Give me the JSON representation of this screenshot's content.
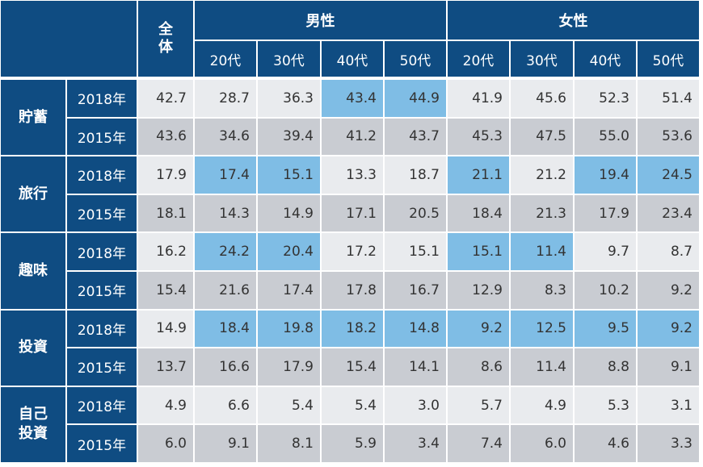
{
  "chart_data": {
    "type": "table",
    "header": {
      "total": "全体",
      "groups": [
        {
          "label": "男性",
          "ages": [
            "20代",
            "30代",
            "40代",
            "50代"
          ]
        },
        {
          "label": "女性",
          "ages": [
            "20代",
            "30代",
            "40代",
            "50代"
          ]
        }
      ]
    },
    "categories": [
      {
        "label": "貯蓄",
        "rows": [
          {
            "year": "2018年",
            "values": [
              "42.7",
              "28.7",
              "36.3",
              "43.4",
              "44.9",
              "41.9",
              "45.6",
              "52.3",
              "51.4"
            ],
            "highlight": [
              false,
              false,
              false,
              true,
              true,
              false,
              false,
              false,
              false
            ]
          },
          {
            "year": "2015年",
            "values": [
              "43.6",
              "34.6",
              "39.4",
              "41.2",
              "43.7",
              "45.3",
              "47.5",
              "55.0",
              "53.6"
            ]
          }
        ]
      },
      {
        "label": "旅行",
        "rows": [
          {
            "year": "2018年",
            "values": [
              "17.9",
              "17.4",
              "15.1",
              "13.3",
              "18.7",
              "21.1",
              "21.2",
              "19.4",
              "24.5"
            ],
            "highlight": [
              false,
              true,
              true,
              false,
              false,
              true,
              false,
              true,
              true
            ]
          },
          {
            "year": "2015年",
            "values": [
              "18.1",
              "14.3",
              "14.9",
              "17.1",
              "20.5",
              "18.4",
              "21.3",
              "17.9",
              "23.4"
            ]
          }
        ]
      },
      {
        "label": "趣味",
        "rows": [
          {
            "year": "2018年",
            "values": [
              "16.2",
              "24.2",
              "20.4",
              "17.2",
              "15.1",
              "15.1",
              "11.4",
              "9.7",
              "8.7"
            ],
            "highlight": [
              false,
              true,
              true,
              false,
              false,
              true,
              true,
              false,
              false
            ]
          },
          {
            "year": "2015年",
            "values": [
              "15.4",
              "21.6",
              "17.4",
              "17.8",
              "16.7",
              "12.9",
              "8.3",
              "10.2",
              "9.2"
            ]
          }
        ]
      },
      {
        "label": "投資",
        "rows": [
          {
            "year": "2018年",
            "values": [
              "14.9",
              "18.4",
              "19.8",
              "18.2",
              "14.8",
              "9.2",
              "12.5",
              "9.5",
              "9.2"
            ],
            "highlight": [
              false,
              true,
              true,
              true,
              true,
              true,
              true,
              true,
              true
            ]
          },
          {
            "year": "2015年",
            "values": [
              "13.7",
              "16.6",
              "17.9",
              "15.4",
              "14.1",
              "8.6",
              "11.4",
              "8.8",
              "9.1"
            ]
          }
        ]
      },
      {
        "label": "自己\n投資",
        "rows": [
          {
            "year": "2018年",
            "values": [
              "4.9",
              "6.6",
              "5.4",
              "5.4",
              "3.0",
              "5.7",
              "4.9",
              "5.3",
              "3.1"
            ],
            "highlight": [
              false,
              false,
              false,
              false,
              false,
              false,
              false,
              false,
              false
            ]
          },
          {
            "year": "2015年",
            "values": [
              "6.0",
              "9.1",
              "8.1",
              "5.9",
              "3.4",
              "7.4",
              "6.0",
              "4.6",
              "3.3"
            ]
          }
        ]
      }
    ],
    "colors": {
      "header": "#0f4c82",
      "row_2018": "#e9ebee",
      "row_2015": "#c9ccd2",
      "highlight": "#7fbde5"
    }
  }
}
